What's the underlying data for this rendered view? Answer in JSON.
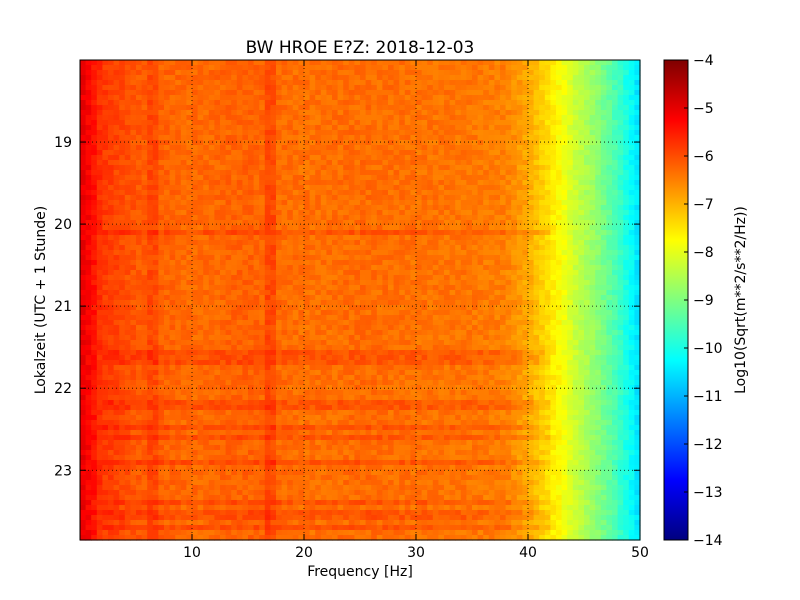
{
  "chart_data": {
    "type": "heatmap",
    "title": "BW HROE E?Z: 2018-12-03",
    "xlabel": "Frequency [Hz]",
    "ylabel": "Lokalzeit (UTC + 1 Stunde)",
    "xlim": [
      0,
      50
    ],
    "ylim": [
      23.85,
      18.0
    ],
    "xticks": [
      10,
      20,
      30,
      40,
      50
    ],
    "yticks": [
      19,
      20,
      21,
      22,
      23
    ],
    "grid": true,
    "colormap": "jet",
    "colorbar": {
      "label": "Log10(Sqrt(m**2/s**2/Hz))",
      "range": [
        -14,
        -4
      ],
      "ticks": [
        -4,
        -5,
        -6,
        -7,
        -8,
        -9,
        -10,
        -11,
        -12,
        -13,
        -14
      ]
    },
    "spectrum_profile": {
      "frequency_hz": [
        0,
        1,
        2,
        5,
        10,
        15,
        20,
        25,
        30,
        35,
        38,
        40,
        41,
        42,
        43,
        44,
        46,
        48,
        50
      ],
      "log10_amplitude": [
        -5.0,
        -5.3,
        -5.8,
        -6.1,
        -6.3,
        -6.2,
        -6.35,
        -6.3,
        -6.35,
        -6.4,
        -6.5,
        -6.9,
        -7.2,
        -7.5,
        -7.8,
        -8.2,
        -8.8,
        -9.6,
        -10.6
      ]
    },
    "features": {
      "peak_line_hz": 17,
      "minor_line_hz": 6.5,
      "disturbance_bands_h": [
        20.1,
        21.6,
        21.7,
        22.2,
        22.5,
        22.6,
        22.9,
        23.4,
        23.5,
        23.6,
        23.7
      ]
    }
  }
}
